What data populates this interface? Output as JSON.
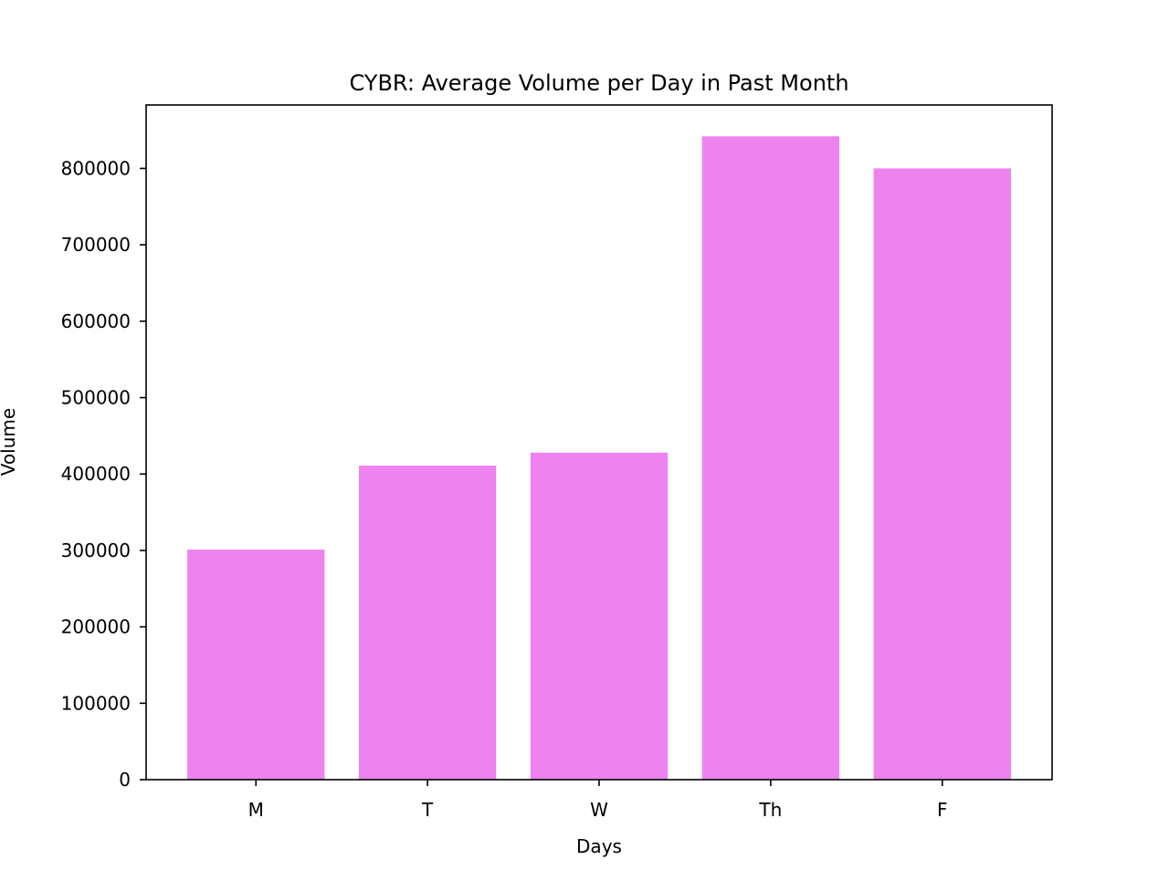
{
  "chart_data": {
    "type": "bar",
    "title": "CYBR: Average Volume per Day in Past Month",
    "xlabel": "Days",
    "ylabel": "Volume",
    "categories": [
      "M",
      "T",
      "W",
      "Th",
      "F"
    ],
    "values": [
      301000,
      411000,
      428000,
      842000,
      800000
    ],
    "ylim": [
      0,
      883000
    ],
    "yticks": [
      0,
      100000,
      200000,
      300000,
      400000,
      500000,
      600000,
      700000,
      800000
    ],
    "ytick_labels": [
      "0",
      "100000",
      "200000",
      "300000",
      "400000",
      "500000",
      "600000",
      "700000",
      "800000"
    ],
    "bar_color": "#ee82ee",
    "grid": false,
    "legend": "none"
  }
}
